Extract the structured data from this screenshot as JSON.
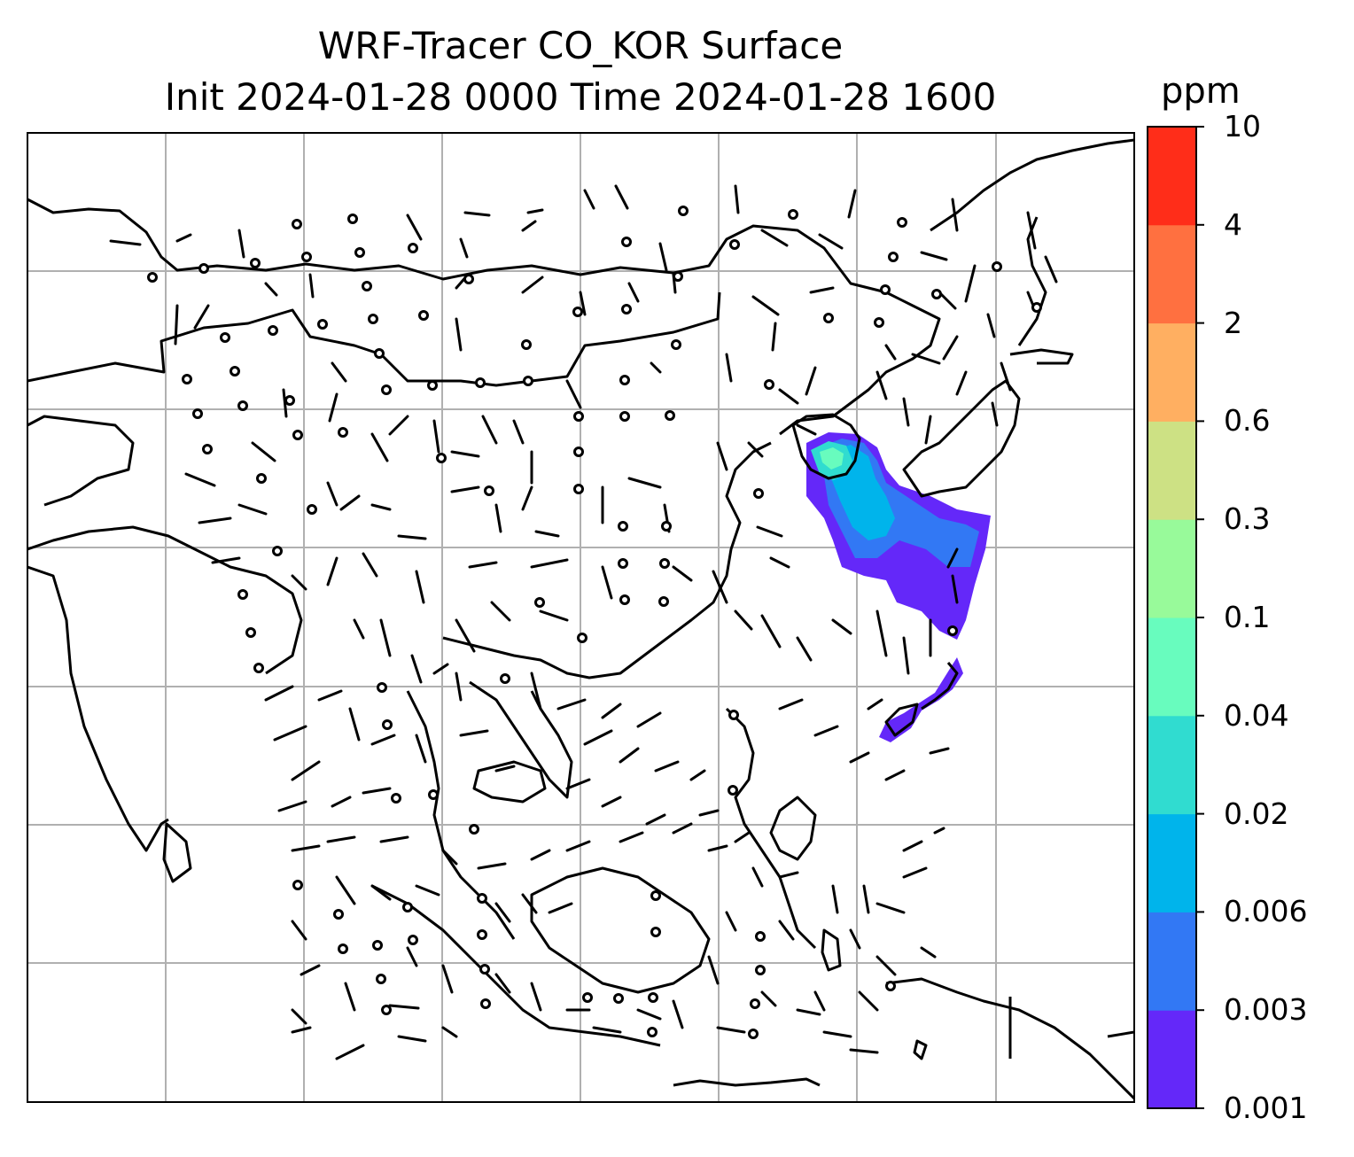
{
  "title": {
    "line1": "WRF-Tracer CO_KOR Surface",
    "line2": "Init 2024-01-28 0000 Time 2024-01-28 1600"
  },
  "colorbar": {
    "unit": "ppm",
    "ticks": [
      "0.001",
      "0.003",
      "0.006",
      "0.02",
      "0.04",
      "0.1",
      "0.3",
      "0.6",
      "2",
      "4",
      "10"
    ],
    "colors": [
      "#6428f9",
      "#3278f4",
      "#00b4eb",
      "#30dcd0",
      "#68fcbe",
      "#98fa9a",
      "#cde184",
      "#ffaf61",
      "#ff7040",
      "#ff2d19"
    ]
  },
  "map": {
    "region": "East and Southeast Asia",
    "gridlines": true,
    "plume_colors": [
      "#6428f9",
      "#3278f4",
      "#00b4eb",
      "#30dcd0",
      "#68fcbe"
    ]
  }
}
